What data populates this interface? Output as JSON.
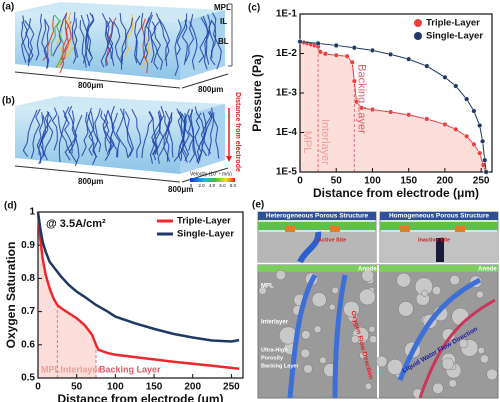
{
  "figure_a": {
    "panel": "(a)",
    "layers": [
      "MPL",
      "IL",
      "BL"
    ],
    "dims": [
      "800μm",
      "800μm"
    ]
  },
  "figure_b": {
    "panel": "(b)",
    "dims": [
      "800μm",
      "800μm"
    ],
    "direction": "Distance from electrode",
    "colorbar_title": "Velocity (10⁻⁴ m/s)",
    "colorbar_ticks": [
      "0",
      "2.0",
      "4.0",
      "6.0",
      "8.0"
    ]
  },
  "figure_e": {
    "panel": "(e)",
    "left_title": "Heterogeneous Porous Structure",
    "right_title": "Homogeneous Porous Structure",
    "active": "Active Site",
    "inactive": "Inactive Site",
    "anode_left": "Anode",
    "anode_right": "Anode",
    "mpl": "MPL",
    "interlayer": "Interlayer",
    "backing": [
      "Ultra-High",
      "Porosity",
      "Backing Layer"
    ],
    "oxygen_flow": "Oxygen Flow Direction",
    "water_flow": "Liquid Water Flow Direction"
  },
  "chart_data": [
    {
      "type": "line",
      "panel": "(c)",
      "xlabel": "Distance from electrode (μm)",
      "ylabel": "Pressure (Pa)",
      "log_y": true,
      "xlim": [
        0,
        265
      ],
      "xticks": [
        0,
        50,
        100,
        150,
        200,
        250
      ],
      "ylim": [
        1e-05,
        0.1
      ],
      "yticks": [
        {
          "value": 1e-05,
          "label": "1E-5"
        },
        {
          "value": 0.0001,
          "label": "1E-4"
        },
        {
          "value": 0.001,
          "label": "1E-3"
        },
        {
          "value": 0.01,
          "label": "1E-2"
        },
        {
          "value": 0.1,
          "label": "1E-1"
        }
      ],
      "marker": "circle",
      "legend": "upper right",
      "shaded_until": 256,
      "region_label_orient": "vertical",
      "regions": [
        {
          "label": "MPL",
          "range": [
            0,
            25
          ]
        },
        {
          "label": "Interlayer",
          "range": [
            25,
            75
          ]
        },
        {
          "label": "Backing Layer",
          "range": [
            75,
            265
          ]
        }
      ],
      "series": [
        {
          "name": "Triple-Layer",
          "color": "#e8413e",
          "x": [
            0,
            5,
            10,
            15,
            20,
            25,
            28,
            35,
            50,
            65,
            72,
            75,
            78,
            85,
            100,
            125,
            150,
            175,
            200,
            215,
            230,
            240,
            248,
            253,
            256
          ],
          "values": [
            0.02,
            0.019,
            0.018,
            0.017,
            0.016,
            0.015,
            0.011,
            0.0098,
            0.009,
            0.0085,
            0.006,
            0.002,
            0.0006,
            0.00042,
            0.00038,
            0.00033,
            0.00028,
            0.00022,
            0.00016,
            0.00012,
            8e-05,
            5e-05,
            3e-05,
            1.5e-05,
            1e-05
          ]
        },
        {
          "name": "Single-Layer",
          "color": "#1f3864",
          "x": [
            0,
            25,
            50,
            75,
            100,
            125,
            150,
            175,
            200,
            215,
            230,
            240,
            248,
            252,
            255,
            257
          ],
          "values": [
            0.02,
            0.018,
            0.016,
            0.014,
            0.012,
            0.0095,
            0.0072,
            0.0048,
            0.0025,
            0.0015,
            0.0007,
            0.00035,
            0.00015,
            6e-05,
            2e-05,
            1e-05
          ]
        }
      ]
    },
    {
      "type": "line",
      "panel": "(d)",
      "xlabel": "Distance from electrode (μm)",
      "ylabel": "Oxygen Saturation",
      "annotation": "@ 3.5A/cm²",
      "xlim": [
        0,
        265
      ],
      "xticks": [
        0,
        50,
        100,
        150,
        200,
        250
      ],
      "ylim": [
        0.5,
        1
      ],
      "yticks": [
        0.5,
        0.6,
        0.7,
        0.8,
        0.9,
        1
      ],
      "legend": "upper right",
      "shaded_until": 75,
      "region_label_orient": "horizontal",
      "regions": [
        {
          "label": "MPL",
          "range": [
            0,
            25
          ]
        },
        {
          "label": "Interlayer",
          "range": [
            25,
            75
          ]
        },
        {
          "label": "Backing Layer",
          "range": [
            75,
            265
          ]
        }
      ],
      "series": [
        {
          "name": "Triple-Layer",
          "color": "#f0282d",
          "x": [
            0,
            3,
            6,
            10,
            15,
            20,
            25,
            30,
            40,
            50,
            60,
            70,
            75,
            78,
            90,
            100,
            125,
            150,
            175,
            200,
            225,
            260
          ],
          "values": [
            1,
            0.92,
            0.86,
            0.81,
            0.77,
            0.74,
            0.72,
            0.71,
            0.695,
            0.68,
            0.66,
            0.63,
            0.6,
            0.585,
            0.575,
            0.57,
            0.563,
            0.556,
            0.549,
            0.543,
            0.537,
            0.528
          ]
        },
        {
          "name": "Single-Layer",
          "color": "#1f3864",
          "x": [
            0,
            3,
            6,
            10,
            15,
            20,
            25,
            30,
            40,
            50,
            60,
            75,
            90,
            100,
            125,
            150,
            175,
            200,
            225,
            250,
            260
          ],
          "values": [
            1,
            0.95,
            0.91,
            0.88,
            0.85,
            0.835,
            0.82,
            0.805,
            0.78,
            0.76,
            0.745,
            0.72,
            0.7,
            0.685,
            0.665,
            0.648,
            0.633,
            0.622,
            0.613,
            0.61,
            0.614
          ]
        }
      ]
    }
  ]
}
